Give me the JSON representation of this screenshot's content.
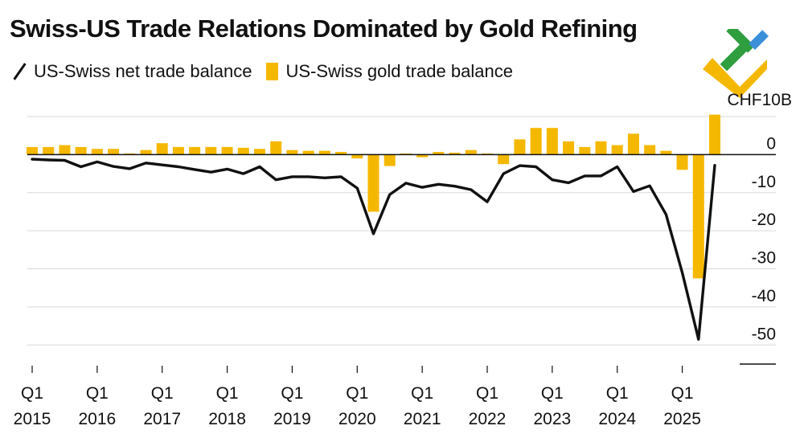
{
  "title": "Swiss-US Trade Relations Dominated by Gold Refining",
  "legend": {
    "items": [
      {
        "label": "US-Swiss net trade balance",
        "color": "#111111",
        "kind": "line"
      },
      {
        "label": "US-Swiss gold trade balance",
        "color": "#f5b800",
        "kind": "bar"
      }
    ]
  },
  "logo": {
    "icon": "brand-logo-icon",
    "colors": [
      "#f5b800",
      "#2e9e3e",
      "#3b8fd9"
    ]
  },
  "chart_data": {
    "type": "bar+line",
    "title": "Swiss-US Trade Relations Dominated by Gold Refining",
    "unit_label": "CHF10B",
    "ylim": [
      -55,
      10
    ],
    "yticks": [
      0,
      -10,
      -20,
      -30,
      -40,
      -50
    ],
    "ytick_labels": [
      "0",
      "-10",
      "-20",
      "-30",
      "-40",
      "-50"
    ],
    "x_start": "Q1 2015",
    "frequency": "quarterly",
    "xtick_labels": [
      {
        "quarter": "Q1",
        "year": "2015",
        "index": 0
      },
      {
        "quarter": "Q1",
        "year": "2016",
        "index": 4
      },
      {
        "quarter": "Q1",
        "year": "2017",
        "index": 8
      },
      {
        "quarter": "Q1",
        "year": "2018",
        "index": 12
      },
      {
        "quarter": "Q1",
        "year": "2019",
        "index": 16
      },
      {
        "quarter": "Q1",
        "year": "2020",
        "index": 20
      },
      {
        "quarter": "Q1",
        "year": "2021",
        "index": 24
      },
      {
        "quarter": "Q1",
        "year": "2022",
        "index": 28
      },
      {
        "quarter": "Q1",
        "year": "2023",
        "index": 32
      },
      {
        "quarter": "Q1",
        "year": "2024",
        "index": 36
      },
      {
        "quarter": "Q1",
        "year": "2025",
        "index": 40
      }
    ],
    "series": [
      {
        "name": "US-Swiss gold trade balance",
        "kind": "bar",
        "color": "#f5b800",
        "values": [
          2,
          2,
          2.5,
          2,
          1.5,
          1.5,
          0.3,
          1.2,
          3,
          2,
          2,
          2,
          2,
          1.8,
          1.5,
          3.5,
          1.2,
          1,
          1,
          0.7,
          -1,
          -15,
          -3,
          0.3,
          -0.7,
          0.7,
          0.5,
          1.2,
          0.3,
          -2.5,
          4,
          7,
          7,
          3.5,
          2,
          3.5,
          2.5,
          5.5,
          2.5,
          1,
          -4,
          -32.5,
          10.5
        ]
      },
      {
        "name": "US-Swiss net trade balance",
        "kind": "line",
        "color": "#111111",
        "values": [
          -1.2,
          -1.4,
          -1.5,
          -3.2,
          -1.9,
          -3.1,
          -3.7,
          -2.2,
          -2.7,
          -3.2,
          -3.9,
          -4.6,
          -3.8,
          -5.0,
          -3.2,
          -6.6,
          -5.8,
          -5.8,
          -6.1,
          -5.8,
          -8.8,
          -20.8,
          -10.5,
          -7.5,
          -8.6,
          -7.8,
          -8.3,
          -9.2,
          -12.4,
          -5.0,
          -2.9,
          -3.2,
          -6.6,
          -7.4,
          -5.6,
          -5.6,
          -3.2,
          -9.7,
          -8.2,
          -15.7,
          -31,
          -48.5,
          -2.8
        ]
      }
    ]
  }
}
